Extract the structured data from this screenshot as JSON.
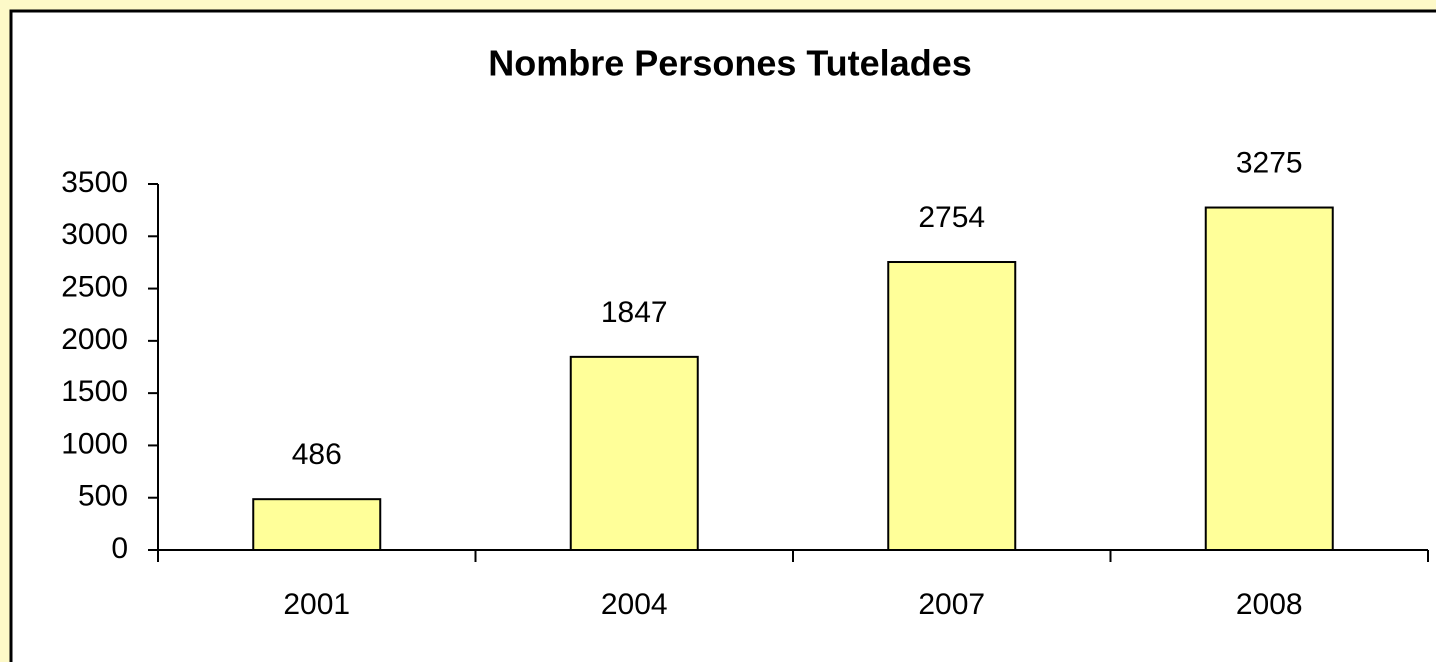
{
  "chart_data": {
    "type": "bar",
    "title": "Nombre Persones Tutelades",
    "categories": [
      "2001",
      "2004",
      "2007",
      "2008"
    ],
    "values": [
      486,
      1847,
      2754,
      3275
    ],
    "color": "#ffff99",
    "ylim": [
      0,
      3500
    ],
    "yticks": [
      0,
      500,
      1000,
      1500,
      2000,
      2500,
      3000,
      3500
    ],
    "grid": false
  }
}
